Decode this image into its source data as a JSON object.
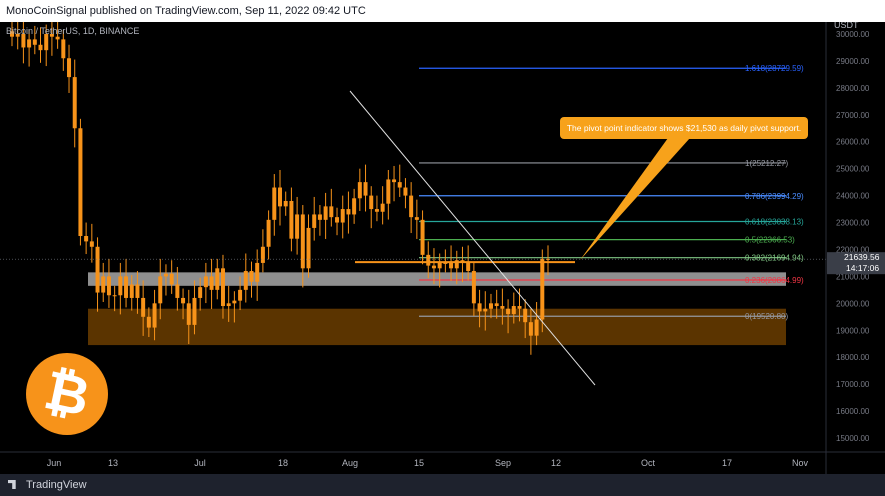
{
  "header": {
    "published": "MonoCoinSignal published on TradingView.com, Sep 11, 2022 09:42 UTC"
  },
  "symbol_line": "Bitcoin / TetherUS, 1D, BINANCE",
  "footer": {
    "brand": "TradingView"
  },
  "callout": {
    "text": "The pivot point indicator shows $21,530 as daily pivot support."
  },
  "btc_logo": {
    "glyph": "₿",
    "color": "#f7931a"
  },
  "colors": {
    "candle": "#f7931a",
    "background": "#000000",
    "callout": "#f7a21b"
  },
  "chart_data": {
    "type": "candlestick",
    "currency": "USDT",
    "yaxis": {
      "ticks": [
        15000,
        16000,
        17000,
        18000,
        19000,
        20000,
        21000,
        22000,
        23000,
        24000,
        25000,
        26000,
        27000,
        28000,
        29000,
        30000
      ],
      "ylim": [
        14700,
        30300
      ]
    },
    "xaxis": {
      "ticks": [
        "Jun",
        "13",
        "Jul",
        "18",
        "Aug",
        "15",
        "Sep",
        "12",
        "Oct",
        "17",
        "Nov"
      ]
    },
    "price_label": {
      "value": "21639.56",
      "countdown": "14:17:06"
    },
    "fib_levels": [
      {
        "label": "1.618(28729.59)",
        "value": 28729.59,
        "color": "#2962ff"
      },
      {
        "label": "1(25212.27)",
        "value": 25212.27,
        "color": "#9598a1"
      },
      {
        "label": "0.786(23994.29)",
        "value": 23994.29,
        "color": "#4a8cff"
      },
      {
        "label": "0.618(23038.13)",
        "value": 23038.13,
        "color": "#26a69a"
      },
      {
        "label": "0.5(22366.53)",
        "value": 22366.53,
        "color": "#4caf50"
      },
      {
        "label": "0.382(21694.94)",
        "value": 21694.94,
        "color": "#81c784"
      },
      {
        "label": "0.236(20864.99)",
        "value": 20864.99,
        "color": "#f23645"
      },
      {
        "label": "0(19520.80)",
        "value": 19520.8,
        "color": "#9598a1"
      }
    ],
    "zones": [
      {
        "name": "resistance",
        "low": 20650,
        "high": 21150,
        "color": "#9e9e9e"
      },
      {
        "name": "support",
        "low": 18450,
        "high": 19800,
        "color": "#6b3d00"
      }
    ],
    "pivot": 21530,
    "trendline": {
      "from": [
        "Jul 29",
        28400
      ],
      "to": [
        "Sep 14",
        17000
      ]
    },
    "candles_close": [
      29900,
      30000,
      29500,
      29800,
      29600,
      29400,
      30000,
      29900,
      29800,
      29100,
      28400,
      26500,
      22500,
      22300,
      22100,
      20400,
      21000,
      20300,
      20300,
      21000,
      20200,
      20700,
      20200,
      19500,
      19100,
      20000,
      21000,
      21100,
      20700,
      20200,
      20000,
      19200,
      20200,
      20600,
      21000,
      20500,
      21300,
      19900,
      20000,
      20100,
      20500,
      21200,
      20800,
      21500,
      22100,
      23100,
      24300,
      23600,
      23800,
      22400,
      23300,
      21300,
      22800,
      23300,
      23100,
      23600,
      23200,
      23000,
      23500,
      23300,
      23900,
      24500,
      24000,
      23500,
      23400,
      23700,
      24600,
      24500,
      24300,
      24000,
      23200,
      23100,
      21800,
      21400,
      21300,
      21500,
      21500,
      21300,
      21600,
      21500,
      21200,
      20000,
      19700,
      19800,
      20000,
      19900,
      19800,
      19600,
      19900,
      19800,
      19300,
      18800,
      19400,
      21650,
      21639.56
    ]
  }
}
